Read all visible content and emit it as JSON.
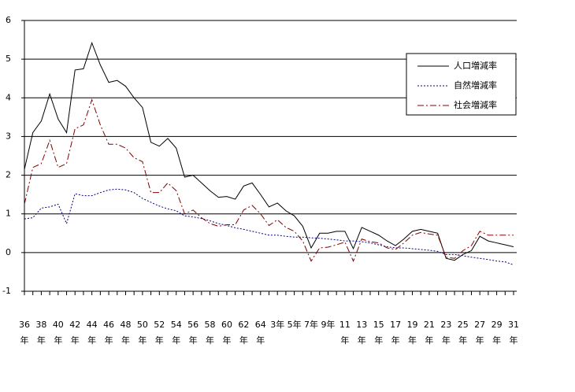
{
  "chart_data": {
    "type": "line",
    "categories": [
      "36年",
      null,
      "38年",
      null,
      "40年",
      null,
      "42年",
      null,
      "44年",
      null,
      "46年",
      null,
      "48年",
      null,
      "50年",
      null,
      "52年",
      null,
      "54年",
      null,
      "56年",
      null,
      "58年",
      null,
      "60年",
      null,
      "62年",
      null,
      "64年",
      null,
      "3年",
      null,
      "5年",
      null,
      "7年",
      null,
      "9年",
      null,
      "11年",
      null,
      "13年",
      null,
      "15年",
      null,
      "17年",
      null,
      "19年",
      null,
      "21年",
      null,
      "23年",
      null,
      "25年",
      null,
      "27年",
      null,
      "29年",
      null,
      "31年"
    ],
    "series": [
      {
        "name": "人口増減率",
        "color": "#000000",
        "dash": "none",
        "values": [
          2.15,
          3.1,
          3.4,
          4.1,
          3.45,
          3.1,
          4.72,
          4.75,
          5.42,
          4.85,
          4.4,
          4.45,
          4.3,
          4.0,
          3.75,
          2.85,
          2.75,
          2.95,
          2.7,
          1.95,
          2.0,
          1.8,
          1.6,
          1.43,
          1.45,
          1.38,
          1.72,
          1.8,
          1.5,
          1.18,
          1.28,
          1.08,
          0.95,
          0.68,
          0.12,
          0.5,
          0.5,
          0.55,
          0.55,
          0.1,
          0.65,
          0.55,
          0.45,
          0.3,
          0.18,
          0.35,
          0.55,
          0.6,
          0.55,
          0.5,
          -0.15,
          -0.2,
          -0.05,
          0.05,
          0.42,
          0.3,
          0.25,
          0.2,
          0.15
        ]
      },
      {
        "name": "自然増減率",
        "color": "#000080",
        "dash": "2 2",
        "values": [
          0.87,
          0.9,
          1.15,
          1.18,
          1.25,
          0.75,
          1.52,
          1.47,
          1.47,
          1.55,
          1.62,
          1.64,
          1.62,
          1.55,
          1.4,
          1.3,
          1.2,
          1.13,
          1.08,
          0.95,
          0.92,
          0.88,
          0.82,
          0.75,
          0.7,
          0.64,
          0.6,
          0.55,
          0.5,
          0.45,
          0.45,
          0.42,
          0.4,
          0.4,
          0.38,
          0.37,
          0.35,
          0.33,
          0.3,
          0.3,
          0.28,
          0.25,
          0.2,
          0.15,
          0.12,
          0.12,
          0.1,
          0.08,
          0.06,
          0.03,
          -0.05,
          -0.05,
          -0.08,
          -0.12,
          -0.15,
          -0.18,
          -0.22,
          -0.24,
          -0.32
        ]
      },
      {
        "name": "社会増減率",
        "color": "#800000",
        "dash": "8 3 2 3",
        "values": [
          1.25,
          2.2,
          2.3,
          2.9,
          2.2,
          2.3,
          3.2,
          3.3,
          3.95,
          3.3,
          2.8,
          2.8,
          2.7,
          2.45,
          2.35,
          1.55,
          1.55,
          1.8,
          1.6,
          1.0,
          1.1,
          0.9,
          0.75,
          0.68,
          0.72,
          0.72,
          1.1,
          1.22,
          1.0,
          0.7,
          0.85,
          0.65,
          0.55,
          0.3,
          -0.22,
          0.12,
          0.14,
          0.2,
          0.27,
          -0.22,
          0.35,
          0.28,
          0.25,
          0.12,
          0.08,
          0.25,
          0.45,
          0.52,
          0.48,
          0.45,
          -0.12,
          -0.15,
          0.05,
          0.18,
          0.55,
          0.45,
          0.45,
          0.45,
          0.45
        ]
      }
    ],
    "ylim": [
      -1,
      6
    ],
    "yticks": [
      -1,
      0,
      1,
      2,
      3,
      4,
      5,
      6
    ],
    "grid": true,
    "legend": "upper right"
  }
}
